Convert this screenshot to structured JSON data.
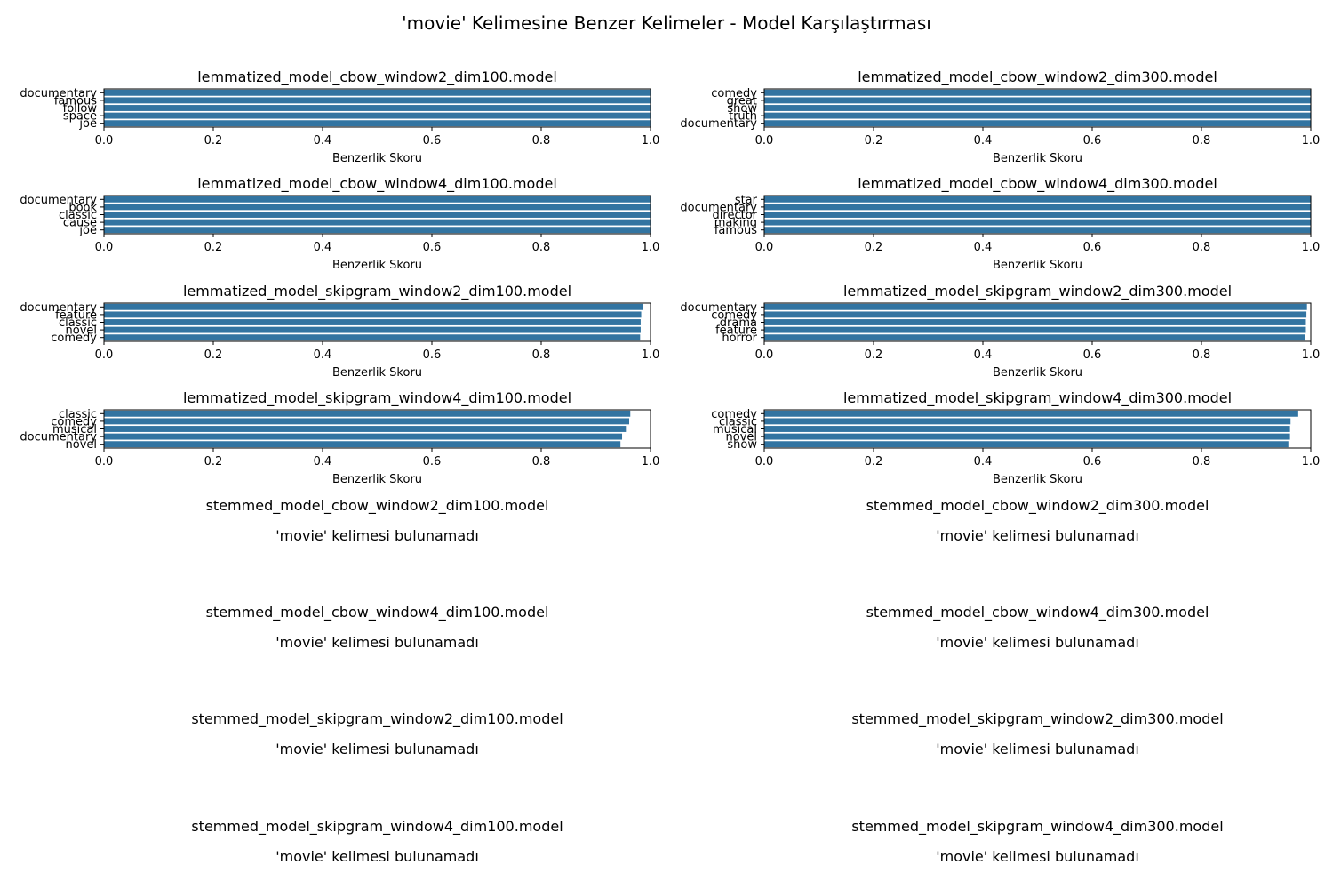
{
  "figure": {
    "title": "'movie' Kelimesine Benzer Kelimeler - Model Karşılaştırması"
  },
  "colors": {
    "bar": "#3274a1",
    "axis": "#000000"
  },
  "chart_data": [
    {
      "type": "bar",
      "orientation": "horizontal",
      "title": "lemmatized_model_cbow_window2_dim100.model",
      "xlabel": "Benzerlik Skoru",
      "ylabel": "",
      "xlim": [
        0,
        1
      ],
      "xticks": [
        "0.0",
        "0.2",
        "0.4",
        "0.6",
        "0.8",
        "1.0"
      ],
      "categories": [
        "documentary",
        "famous",
        "follow",
        "space",
        "joe"
      ],
      "values": [
        0.999,
        0.999,
        0.999,
        0.999,
        0.999
      ]
    },
    {
      "type": "bar",
      "orientation": "horizontal",
      "title": "lemmatized_model_cbow_window2_dim300.model",
      "xlabel": "Benzerlik Skoru",
      "ylabel": "",
      "xlim": [
        0,
        1
      ],
      "xticks": [
        "0.0",
        "0.2",
        "0.4",
        "0.6",
        "0.8",
        "1.0"
      ],
      "categories": [
        "comedy",
        "great",
        "show",
        "truth",
        "documentary"
      ],
      "values": [
        1.0,
        1.0,
        1.0,
        1.0,
        1.0
      ]
    },
    {
      "type": "bar",
      "orientation": "horizontal",
      "title": "lemmatized_model_cbow_window4_dim100.model",
      "xlabel": "Benzerlik Skoru",
      "ylabel": "",
      "xlim": [
        0,
        1
      ],
      "xticks": [
        "0.0",
        "0.2",
        "0.4",
        "0.6",
        "0.8",
        "1.0"
      ],
      "categories": [
        "documentary",
        "book",
        "classic",
        "cause",
        "joe"
      ],
      "values": [
        0.999,
        0.999,
        0.999,
        0.999,
        0.999
      ]
    },
    {
      "type": "bar",
      "orientation": "horizontal",
      "title": "lemmatized_model_cbow_window4_dim300.model",
      "xlabel": "Benzerlik Skoru",
      "ylabel": "",
      "xlim": [
        0,
        1
      ],
      "xticks": [
        "0.0",
        "0.2",
        "0.4",
        "0.6",
        "0.8",
        "1.0"
      ],
      "categories": [
        "star",
        "documentary",
        "director",
        "making",
        "famous"
      ],
      "values": [
        1.0,
        1.0,
        1.0,
        1.0,
        1.0
      ]
    },
    {
      "type": "bar",
      "orientation": "horizontal",
      "title": "lemmatized_model_skipgram_window2_dim100.model",
      "xlabel": "Benzerlik Skoru",
      "ylabel": "",
      "xlim": [
        0,
        1
      ],
      "xticks": [
        "0.0",
        "0.2",
        "0.4",
        "0.6",
        "0.8",
        "1.0"
      ],
      "categories": [
        "documentary",
        "feature",
        "classic",
        "novel",
        "comedy"
      ],
      "values": [
        0.987,
        0.983,
        0.982,
        0.982,
        0.981
      ]
    },
    {
      "type": "bar",
      "orientation": "horizontal",
      "title": "lemmatized_model_skipgram_window2_dim300.model",
      "xlabel": "Benzerlik Skoru",
      "ylabel": "",
      "xlim": [
        0,
        1
      ],
      "xticks": [
        "0.0",
        "0.2",
        "0.4",
        "0.6",
        "0.8",
        "1.0"
      ],
      "categories": [
        "documentary",
        "comedy",
        "drama",
        "feature",
        "horror"
      ],
      "values": [
        0.993,
        0.992,
        0.991,
        0.991,
        0.99
      ]
    },
    {
      "type": "bar",
      "orientation": "horizontal",
      "title": "lemmatized_model_skipgram_window4_dim100.model",
      "xlabel": "Benzerlik Skoru",
      "ylabel": "",
      "xlim": [
        0,
        1
      ],
      "xticks": [
        "0.0",
        "0.2",
        "0.4",
        "0.6",
        "0.8",
        "1.0"
      ],
      "categories": [
        "classic",
        "comedy",
        "musical",
        "documentary",
        "novel"
      ],
      "values": [
        0.963,
        0.961,
        0.955,
        0.948,
        0.945
      ]
    },
    {
      "type": "bar",
      "orientation": "horizontal",
      "title": "lemmatized_model_skipgram_window4_dim300.model",
      "xlabel": "Benzerlik Skoru",
      "ylabel": "",
      "xlim": [
        0,
        1
      ],
      "xticks": [
        "0.0",
        "0.2",
        "0.4",
        "0.6",
        "0.8",
        "1.0"
      ],
      "categories": [
        "comedy",
        "classic",
        "musical",
        "novel",
        "show"
      ],
      "values": [
        0.977,
        0.963,
        0.962,
        0.962,
        0.959
      ]
    }
  ],
  "empty_panels": [
    {
      "title": "stemmed_model_cbow_window2_dim100.model",
      "message": "'movie' kelimesi bulunamadı"
    },
    {
      "title": "stemmed_model_cbow_window2_dim300.model",
      "message": "'movie' kelimesi bulunamadı"
    },
    {
      "title": "stemmed_model_cbow_window4_dim100.model",
      "message": "'movie' kelimesi bulunamadı"
    },
    {
      "title": "stemmed_model_cbow_window4_dim300.model",
      "message": "'movie' kelimesi bulunamadı"
    },
    {
      "title": "stemmed_model_skipgram_window2_dim100.model",
      "message": "'movie' kelimesi bulunamadı"
    },
    {
      "title": "stemmed_model_skipgram_window2_dim300.model",
      "message": "'movie' kelimesi bulunamadı"
    },
    {
      "title": "stemmed_model_skipgram_window4_dim100.model",
      "message": "'movie' kelimesi bulunamadı"
    },
    {
      "title": "stemmed_model_skipgram_window4_dim300.model",
      "message": "'movie' kelimesi bulunamadı"
    }
  ]
}
